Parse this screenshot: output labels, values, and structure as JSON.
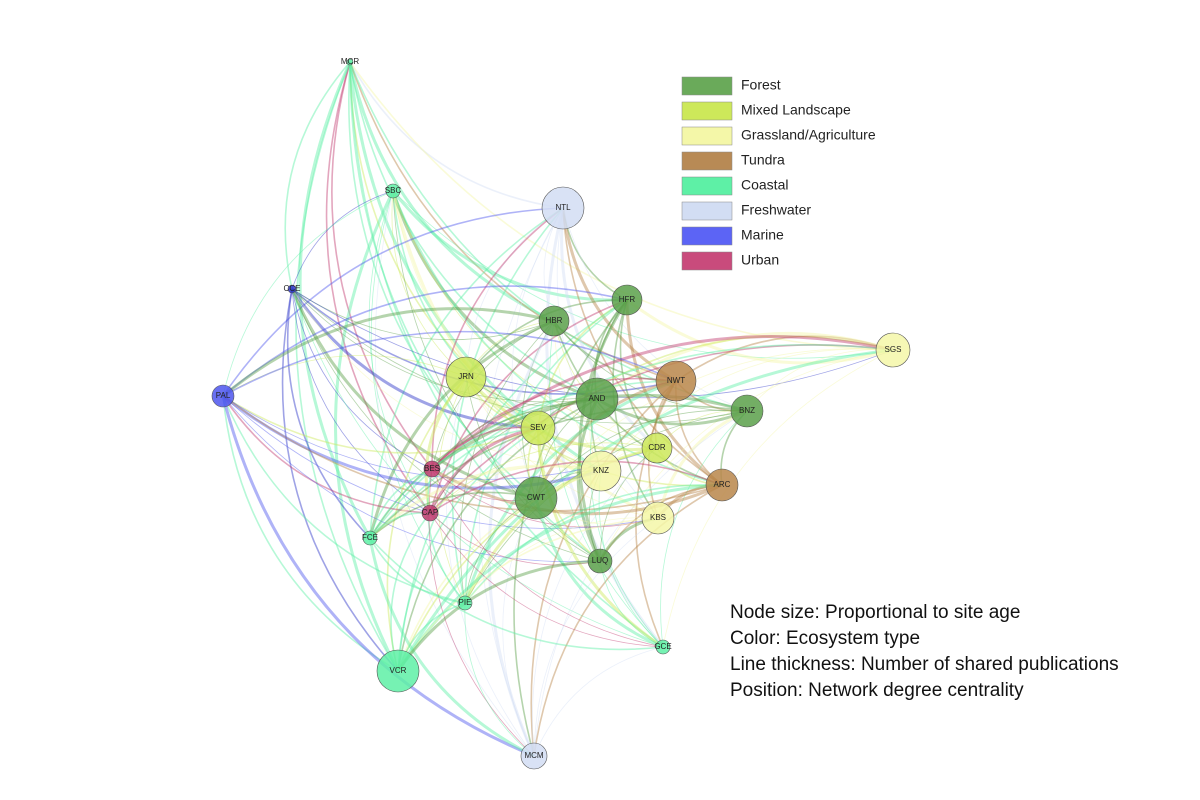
{
  "legend": [
    {
      "label": "Forest",
      "color": "#6aaa5a"
    },
    {
      "label": "Mixed Landscape",
      "color": "#cde85a"
    },
    {
      "label": "Grassland/Agriculture",
      "color": "#f4f7a8"
    },
    {
      "label": "Tundra",
      "color": "#b88a55"
    },
    {
      "label": "Coastal",
      "color": "#5ef0a6"
    },
    {
      "label": "Freshwater",
      "color": "#d2ddf3"
    },
    {
      "label": "Marine",
      "color": "#5c64f5"
    },
    {
      "label": "Urban",
      "color": "#c94b7c"
    }
  ],
  "nodes": [
    {
      "label": "MCR",
      "color": "#5ef0a6"
    },
    {
      "label": "SBC",
      "color": "#5ef0a6"
    },
    {
      "label": "NTL",
      "color": "#d2ddf3"
    },
    {
      "label": "CCE",
      "color": "#2a33c8"
    },
    {
      "label": "HFR",
      "color": "#5aa04a"
    },
    {
      "label": "HBR",
      "color": "#5aa04a"
    },
    {
      "label": "SGS",
      "color": "#f4f7a8"
    },
    {
      "label": "JRN",
      "color": "#cde85a"
    },
    {
      "label": "NWT",
      "color": "#b8864a"
    },
    {
      "label": "AND",
      "color": "#5aa04a"
    },
    {
      "label": "PAL",
      "color": "#4e56ee"
    },
    {
      "label": "BNZ",
      "color": "#5aa04a"
    },
    {
      "label": "SEV",
      "color": "#cde85a"
    },
    {
      "label": "CDR",
      "color": "#cde85a"
    },
    {
      "label": "BES",
      "color": "#c0396e"
    },
    {
      "label": "KNZ",
      "color": "#f4f7a8"
    },
    {
      "label": "ARC",
      "color": "#b8864a"
    },
    {
      "label": "CWT",
      "color": "#5aa04a"
    },
    {
      "label": "CAP",
      "color": "#c0396e"
    },
    {
      "label": "KBS",
      "color": "#f4f7a8"
    },
    {
      "label": "FCE",
      "color": "#5ef0a6"
    },
    {
      "label": "LUQ",
      "color": "#5aa04a"
    },
    {
      "label": "PIE",
      "color": "#5ef0a6"
    },
    {
      "label": "GCE",
      "color": "#5ef0a6"
    },
    {
      "label": "VCR",
      "color": "#5ef0a6"
    },
    {
      "label": "MCM",
      "color": "#d2ddf3"
    }
  ],
  "notes": [
    "Node size: Proportional to site age",
    "Color: Ecosystem type",
    "Line thickness: Number of shared publications",
    "Position: Network degree centrality"
  ]
}
